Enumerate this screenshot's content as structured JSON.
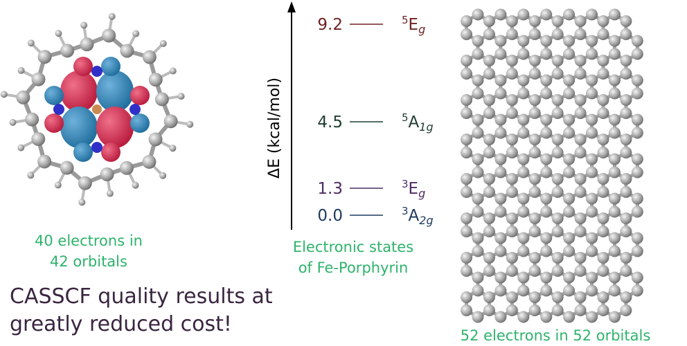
{
  "left_molecule": {
    "caption": [
      "40 electrons in",
      "42 orbitals"
    ]
  },
  "summary": [
    "CASSCF quality results at",
    "greatly reduced cost!"
  ],
  "energy_diagram": {
    "axis_label": "ΔE (kcal/mol)",
    "caption": [
      "Electronic states",
      "of Fe-Porphyrin"
    ],
    "levels": [
      {
        "energy": 9.2,
        "state": {
          "sup": "5",
          "main": "E",
          "sub": "g"
        },
        "color": "#6e2222"
      },
      {
        "energy": 4.5,
        "state": {
          "sup": "5",
          "main": "A",
          "sub": "1g"
        },
        "color": "#1f3d2e"
      },
      {
        "energy": 1.3,
        "state": {
          "sup": "3",
          "main": "E",
          "sub": "g"
        },
        "color": "#4d2d62"
      },
      {
        "energy": {
          "value": 0,
          "label": "0.0"
        },
        "state": {
          "sup": "3",
          "main": "A",
          "sub": "2g"
        },
        "color": "#1e3a60"
      }
    ]
  },
  "right_molecule": {
    "caption": "52 electrons in 52 orbitals"
  }
}
